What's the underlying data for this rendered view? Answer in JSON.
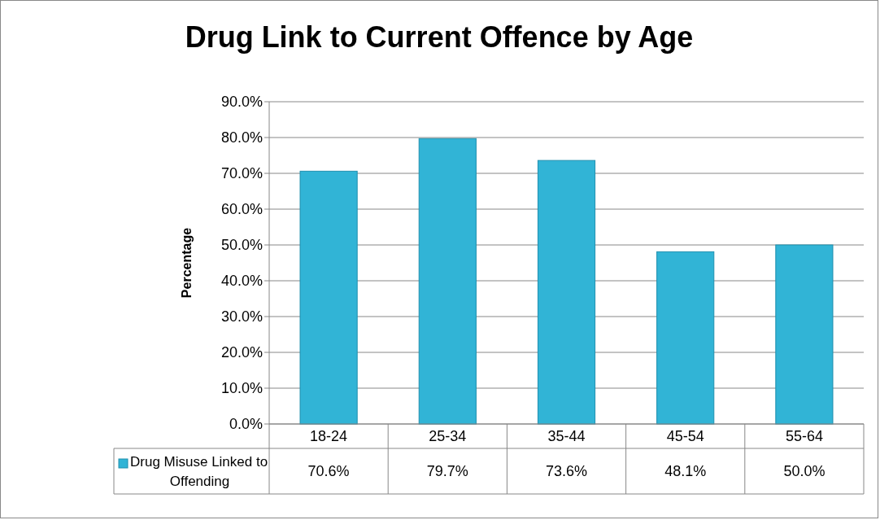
{
  "chart_data": {
    "type": "bar",
    "title": "Drug Link to Current Offence by Age",
    "ylabel": "Percentage",
    "categories": [
      "18-24",
      "25-34",
      "35-44",
      "45-54",
      "55-64"
    ],
    "series": [
      {
        "name": "Drug Misuse Linked to Offending",
        "color": "#31b4d6",
        "values": [
          70.6,
          79.7,
          73.6,
          48.1,
          50.0
        ],
        "value_labels": [
          "70.6%",
          "79.7%",
          "73.6%",
          "48.1%",
          "50.0%"
        ]
      }
    ],
    "ylim": [
      0,
      90
    ],
    "yticks": [
      {
        "value": 0,
        "label": "0.0%"
      },
      {
        "value": 10,
        "label": "10.0%"
      },
      {
        "value": 20,
        "label": "20.0%"
      },
      {
        "value": 30,
        "label": "30.0%"
      },
      {
        "value": 40,
        "label": "40.0%"
      },
      {
        "value": 50,
        "label": "50.0%"
      },
      {
        "value": 60,
        "label": "60.0%"
      },
      {
        "value": 70,
        "label": "70.0%"
      },
      {
        "value": 80,
        "label": "80.0%"
      },
      {
        "value": 90,
        "label": "90.0%"
      }
    ],
    "grid": "y",
    "legend": "bottom"
  }
}
